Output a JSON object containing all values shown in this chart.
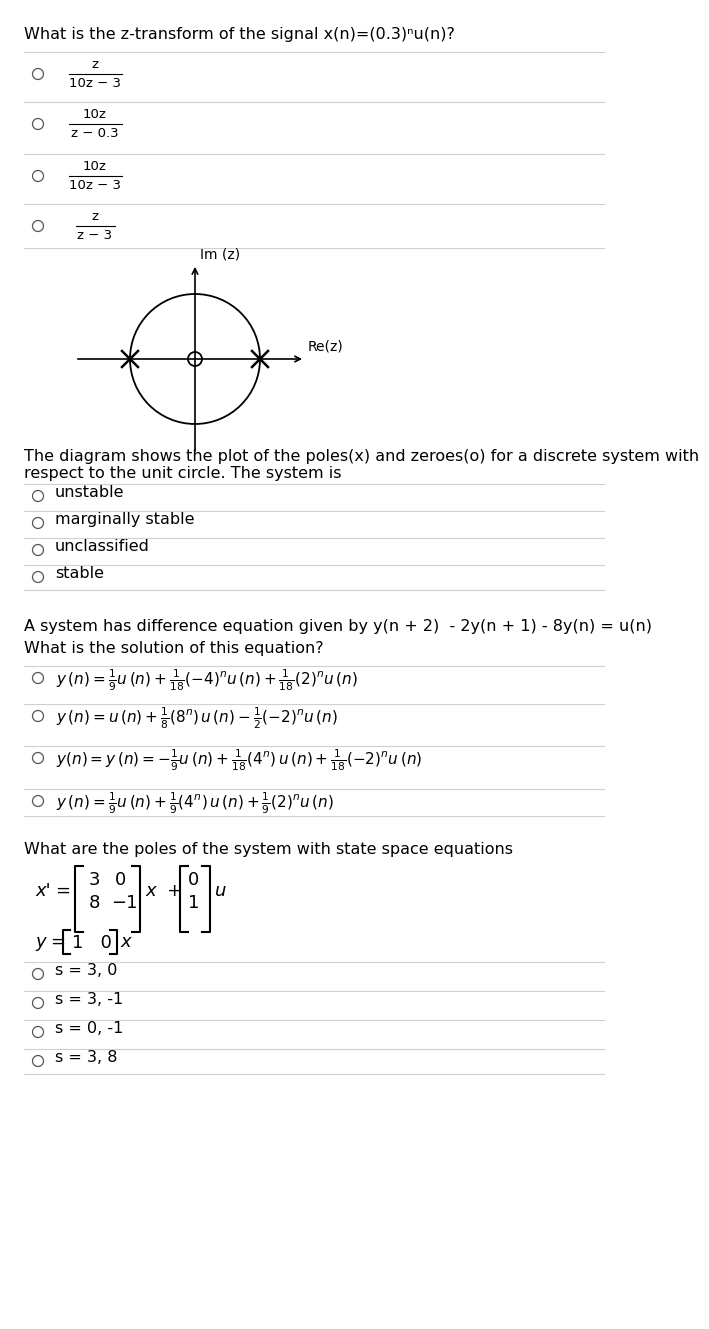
{
  "bg_color": "#ffffff",
  "q1_title": "What is the z-transform of the signal x(n)=(0.3)ⁿu(n)?",
  "q1_fractions": [
    {
      "num": "z",
      "den": "10z − 3"
    },
    {
      "num": "10z",
      "den": "z − 0.3"
    },
    {
      "num": "10z",
      "den": "10z − 3"
    },
    {
      "num": "z",
      "den": "z − 3"
    }
  ],
  "diagram_im": "Im (z)",
  "diagram_re": "Re(z)",
  "q2_text": "The diagram shows the plot of the poles(x) and zeroes(o) for a discrete system with\nrespect to the unit circle. The system is",
  "q2_options": [
    "unstable",
    "marginally stable",
    "unclassified",
    "stable"
  ],
  "q3_title": "A system has difference equation given by y(n + 2)  - 2y(n + 1) - 8y(n) = u(n)",
  "q3_sub": "What is the solution of this equation?",
  "q4_title": "What are the poles of the system with state space equations",
  "q4_options": [
    "s = 3, 0",
    "s = 3, -1",
    "s = 0, -1",
    "s = 3, 8"
  ],
  "line_color": "#d0d0d0",
  "text_fs": 11.5,
  "small_fs": 9.5,
  "math_fs": 11.0
}
